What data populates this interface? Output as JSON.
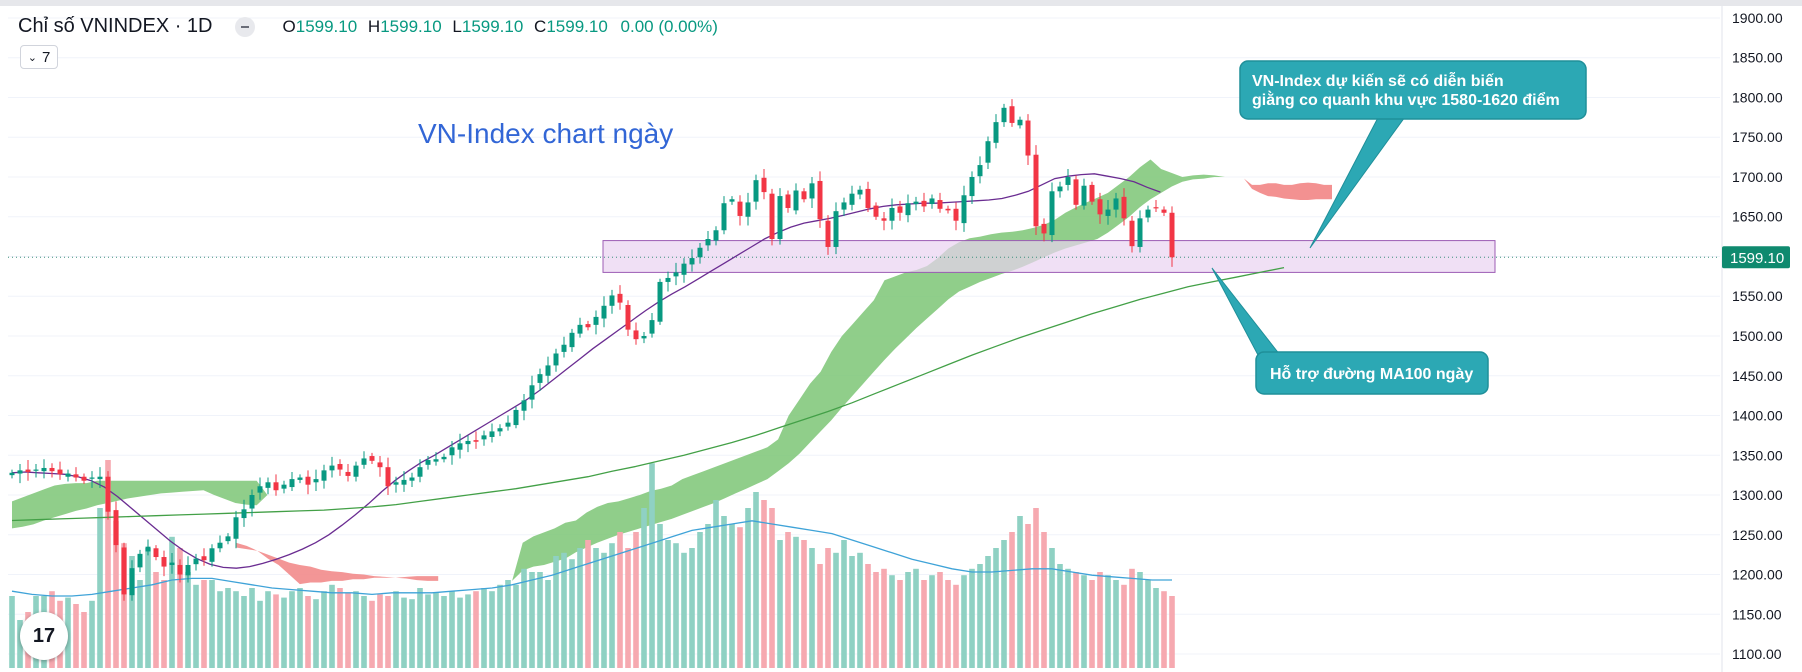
{
  "header": {
    "title": "Chỉ số VNINDEX · 1D",
    "o_label": "O",
    "o_value": "1599.10",
    "h_label": "H",
    "h_value": "1599.10",
    "l_label": "L",
    "l_value": "1599.10",
    "c_label": "C",
    "c_value": "1599.10",
    "change": "0.00 (0.00%)"
  },
  "indicators_badge": "7",
  "logo_text": "17",
  "colors": {
    "up": "#089981",
    "down": "#f23645",
    "cloud": "#7cc576",
    "cloud_neg": "#f28b8b",
    "ma_short": "#6a2c91",
    "ma_long": "#43a047",
    "vol_up": "#8fd1c3",
    "vol_down": "#f6a9b0",
    "vol_ma": "#3fa3d8",
    "annotation_fill": "#2ca8b4",
    "zone_fill": "#e9d3f1",
    "zone_border": "#9c5cb4"
  },
  "chart_data": {
    "type": "candlestick",
    "title": "VN-Index chart ngày",
    "ylim": [
      1095,
      1905
    ],
    "price_ticks": [
      1900,
      1850,
      1800,
      1750,
      1700,
      1650,
      1600,
      1550,
      1500,
      1450,
      1400,
      1350,
      1300,
      1250,
      1200,
      1150,
      1100
    ],
    "price_tick_labels": [
      "1900.00",
      "1850.00",
      "1800.00",
      "1750.00",
      "1700.00",
      "1650.00",
      "1600.00",
      "1550.00",
      "1500.00",
      "1450.00",
      "1400.00",
      "1350.00",
      "1300.00",
      "1250.00",
      "1200.00",
      "1150.00",
      "1100.00"
    ],
    "last_price": 1599.1,
    "last_price_label": "1599.10",
    "closes": [
      1328,
      1331,
      1329,
      1332,
      1334,
      1330,
      1326,
      1327,
      1322,
      1318,
      1322,
      1323,
      1279,
      1237,
      1175,
      1208,
      1226,
      1235,
      1222,
      1210,
      1215,
      1200,
      1212,
      1220,
      1218,
      1233,
      1240,
      1248,
      1272,
      1282,
      1300,
      1311,
      1316,
      1306,
      1313,
      1320,
      1322,
      1313,
      1320,
      1331,
      1337,
      1332,
      1324,
      1337,
      1346,
      1343,
      1335,
      1311,
      1316,
      1319,
      1322,
      1335,
      1344,
      1345,
      1348,
      1360,
      1365,
      1368,
      1367,
      1375,
      1380,
      1384,
      1391,
      1407,
      1419,
      1438,
      1452,
      1463,
      1478,
      1489,
      1504,
      1514,
      1511,
      1524,
      1538,
      1551,
      1542,
      1508,
      1496,
      1500,
      1520,
      1568,
      1573,
      1580,
      1591,
      1598,
      1611,
      1622,
      1633,
      1667,
      1672,
      1651,
      1668,
      1696,
      1681,
      1622,
      1676,
      1661,
      1683,
      1672,
      1692,
      1647,
      1612,
      1657,
      1668,
      1679,
      1684,
      1661,
      1650,
      1645,
      1661,
      1655,
      1667,
      1669,
      1663,
      1673,
      1660,
      1658,
      1645,
      1677,
      1700,
      1715,
      1745,
      1769,
      1787,
      1768,
      1772,
      1727,
      1638,
      1629,
      1682,
      1688,
      1700,
      1665,
      1689,
      1669,
      1653,
      1659,
      1673,
      1648,
      1613,
      1648,
      1659,
      1661,
      1655,
      1599
    ],
    "ma_short": [
      1328,
      1329,
      1328,
      1327,
      1326,
      1323,
      1318,
      1310,
      1298,
      1284,
      1270,
      1256,
      1242,
      1230,
      1220,
      1213,
      1209,
      1208,
      1210,
      1214,
      1219,
      1225,
      1232,
      1240,
      1250,
      1262,
      1275,
      1289,
      1304,
      1318,
      1330,
      1341,
      1350,
      1360,
      1370,
      1380,
      1390,
      1400,
      1410,
      1420,
      1432,
      1445,
      1458,
      1471,
      1484,
      1496,
      1508,
      1520,
      1532,
      1543,
      1553,
      1562,
      1572,
      1582,
      1592,
      1602,
      1612,
      1622,
      1630,
      1637,
      1642,
      1645,
      1648,
      1652,
      1656,
      1660,
      1663,
      1665,
      1666,
      1667,
      1667,
      1668,
      1669,
      1670,
      1671,
      1673,
      1677,
      1682,
      1690,
      1698,
      1701,
      1703,
      1704,
      1701,
      1698,
      1694,
      1687,
      1681
    ],
    "ma_short_start_index": 0,
    "ma_long": [
      1268,
      1269,
      1270,
      1271,
      1272,
      1273,
      1274,
      1275,
      1276,
      1277,
      1278,
      1279,
      1280,
      1281,
      1283,
      1285,
      1288,
      1292,
      1296,
      1300,
      1304,
      1308,
      1313,
      1318,
      1323,
      1330,
      1336,
      1343,
      1350,
      1358,
      1366,
      1375,
      1385,
      1395,
      1405,
      1416,
      1428,
      1440,
      1452,
      1464,
      1476,
      1487,
      1498,
      1508,
      1518,
      1528,
      1537,
      1546,
      1554,
      1562,
      1568,
      1574,
      1580,
      1586
    ],
    "ma_long_step": 3,
    "cloud": {
      "upper": [
        1292,
        1297,
        1302,
        1307,
        1312,
        1314,
        1315,
        1315,
        1318,
        1318,
        1318,
        1318,
        1318,
        1318,
        1318,
        1318,
        1318,
        1318,
        1318,
        1318,
        1318,
        1318,
        1318,
        1318,
        1300,
        1290,
        1280,
        1268,
        1256,
        1244,
        1235,
        1230,
        1222,
        1216,
        1212,
        1210,
        1206,
        1204,
        1203,
        1201,
        1200,
        1198,
        1197,
        1196,
        1195,
        1193,
        1192,
        1192,
        1240,
        1248,
        1253,
        1258,
        1265,
        1268,
        1278,
        1285,
        1290,
        1292,
        1296,
        1300,
        1305,
        1308,
        1312,
        1320,
        1325,
        1330,
        1335,
        1340,
        1345,
        1350,
        1355,
        1360,
        1370,
        1400,
        1420,
        1440,
        1455,
        1480,
        1500,
        1515,
        1530,
        1545,
        1570,
        1575,
        1580,
        1583,
        1588,
        1598,
        1610,
        1618,
        1623,
        1625,
        1628,
        1630,
        1631,
        1633,
        1636,
        1640,
        1646,
        1655,
        1662,
        1668,
        1674,
        1680,
        1690,
        1700,
        1712,
        1722,
        1710,
        1705,
        1700,
        1702,
        1703,
        1702,
        1700,
        1698,
        1696
      ],
      "lower": [
        1258,
        1260,
        1263,
        1268,
        1272,
        1276,
        1280,
        1283,
        1287,
        1290,
        1293,
        1296,
        1298,
        1300,
        1302,
        1303,
        1304,
        1305,
        1306,
        1300,
        1295,
        1290,
        1288,
        1287,
        1300,
        1290,
        1280,
        1268,
        1256,
        1244,
        1235,
        1230,
        1222,
        1216,
        1212,
        1210,
        1206,
        1204,
        1203,
        1201,
        1200,
        1198,
        1197,
        1196,
        1195,
        1193,
        1192,
        1192,
        1205,
        1210,
        1212,
        1216,
        1220,
        1228,
        1234,
        1240,
        1245,
        1250,
        1254,
        1258,
        1262,
        1266,
        1270,
        1275,
        1280,
        1285,
        1290,
        1296,
        1302,
        1308,
        1314,
        1320,
        1330,
        1340,
        1352,
        1366,
        1380,
        1394,
        1410,
        1425,
        1440,
        1455,
        1470,
        1484,
        1497,
        1510,
        1522,
        1534,
        1546,
        1556,
        1562,
        1568,
        1573,
        1578,
        1582,
        1587,
        1593,
        1599,
        1605,
        1610,
        1614,
        1618,
        1622,
        1630,
        1640,
        1650,
        1662,
        1672,
        1680,
        1688,
        1694,
        1697,
        1698,
        1700,
        1700,
        1698,
        1696
      ],
      "negative_upper": [
        1234,
        1232,
        1230,
        1225,
        1220,
        1215,
        1212,
        1210,
        1206,
        1204,
        1203,
        1201,
        1200,
        1198,
        1197,
        1196,
        1195,
        1193,
        1192,
        1192
      ],
      "negative_lower": [
        1240,
        1236,
        1230,
        1220,
        1212,
        1200,
        1188,
        1190,
        1190,
        1192,
        1192,
        1194,
        1194,
        1196,
        1196,
        1196,
        1197,
        1198,
        1198,
        1198
      ],
      "negative_start_index": 28,
      "future_negative_upper": [
        1698,
        1690,
        1690,
        1692,
        1692,
        1690,
        1690,
        1692,
        1693,
        1692,
        1690,
        1690
      ],
      "future_negative_lower": [
        1698,
        1685,
        1680,
        1676,
        1675,
        1673,
        1672,
        1671,
        1671,
        1672,
        1672,
        1672
      ]
    },
    "volume": {
      "values": [
        0.45,
        0.3,
        0.35,
        0.45,
        0.45,
        0.48,
        0.42,
        0.44,
        0.4,
        0.35,
        0.42,
        1.0,
        1.3,
        0.92,
        0.78,
        0.7,
        0.55,
        0.75,
        0.6,
        0.55,
        0.82,
        0.75,
        0.6,
        0.52,
        0.55,
        0.55,
        0.48,
        0.5,
        0.48,
        0.45,
        0.5,
        0.42,
        0.48,
        0.46,
        0.44,
        0.48,
        0.5,
        0.45,
        0.43,
        0.48,
        0.52,
        0.5,
        0.47,
        0.48,
        0.45,
        0.42,
        0.46,
        0.45,
        0.48,
        0.44,
        0.43,
        0.5,
        0.46,
        0.47,
        0.45,
        0.48,
        0.44,
        0.46,
        0.48,
        0.5,
        0.48,
        0.52,
        0.55,
        0.52,
        0.62,
        0.6,
        0.6,
        0.55,
        0.7,
        0.72,
        0.68,
        0.75,
        0.8,
        0.75,
        0.72,
        0.78,
        0.85,
        0.75,
        0.85,
        1.0,
        1.28,
        0.9,
        0.8,
        0.78,
        0.72,
        0.75,
        0.85,
        0.9,
        1.05,
        0.95,
        0.9,
        0.88,
        1.0,
        1.1,
        1.05,
        1.0,
        0.8,
        0.85,
        0.82,
        0.8,
        0.75,
        0.65,
        0.75,
        0.72,
        0.8,
        0.7,
        0.72,
        0.65,
        0.6,
        0.62,
        0.58,
        0.55,
        0.6,
        0.62,
        0.55,
        0.58,
        0.6,
        0.55,
        0.52,
        0.58,
        0.62,
        0.65,
        0.7,
        0.75,
        0.8,
        0.85,
        0.95,
        0.9,
        1.0,
        0.85,
        0.75,
        0.65,
        0.62,
        0.6,
        0.58,
        0.55,
        0.6,
        0.58,
        0.55,
        0.52,
        0.62,
        0.6,
        0.55,
        0.5,
        0.48,
        0.45
      ],
      "ma": [
        0.48,
        0.46,
        0.45,
        0.45,
        0.46,
        0.48,
        0.5,
        0.52,
        0.55,
        0.56,
        0.56,
        0.54,
        0.52,
        0.5,
        0.49,
        0.48,
        0.47,
        0.47,
        0.46,
        0.47,
        0.47,
        0.47,
        0.48,
        0.49,
        0.5,
        0.52,
        0.55,
        0.58,
        0.62,
        0.66,
        0.7,
        0.74,
        0.78,
        0.82,
        0.86,
        0.88,
        0.9,
        0.92,
        0.9,
        0.88,
        0.86,
        0.84,
        0.8,
        0.76,
        0.72,
        0.68,
        0.65,
        0.62,
        0.6,
        0.6,
        0.61,
        0.62,
        0.62,
        0.6,
        0.58,
        0.57,
        0.56,
        0.55,
        0.55
      ]
    },
    "support_zone": {
      "low": 1580,
      "high": 1620
    },
    "annotations": [
      {
        "text_lines": [
          "VN-Index dự kiến sẽ có diễn biến",
          "giằng co quanh khu vực 1580-1620 điểm"
        ]
      },
      {
        "text_lines": [
          "Hỗ trợ đường MA100 ngày"
        ]
      }
    ]
  }
}
